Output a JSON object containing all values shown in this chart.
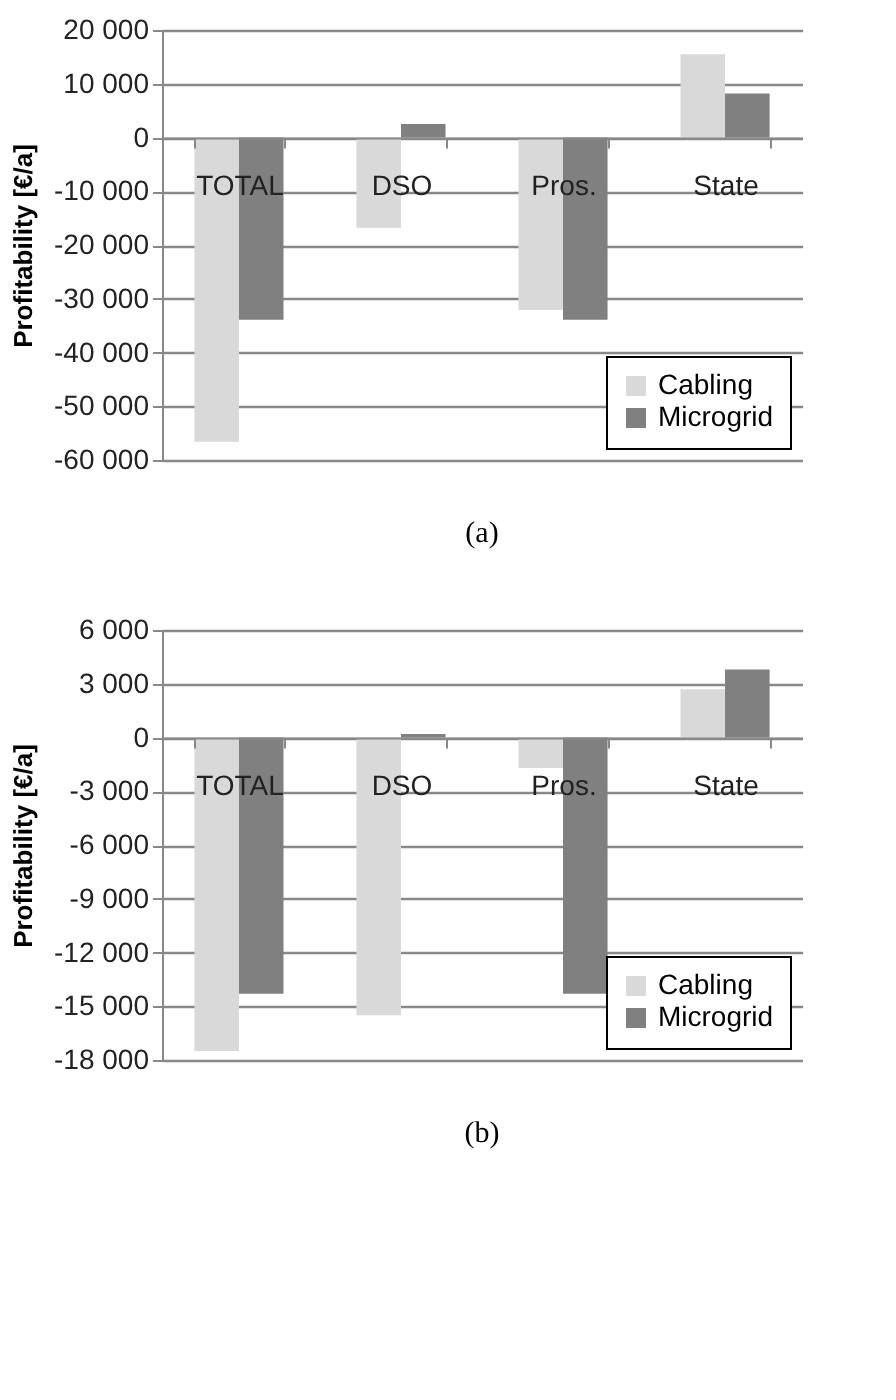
{
  "chart_data": [
    {
      "type": "bar",
      "categories": [
        "TOTAL",
        "DSO",
        "Pros.",
        "State"
      ],
      "ylabel": "Profitability [€/a]",
      "series": [
        {
          "name": "Cabling",
          "color": "#d9d9d9",
          "values": [
            -56600,
            -16800,
            -32100,
            15500
          ]
        },
        {
          "name": "Microgrid",
          "color": "#808080",
          "values": [
            -33900,
            2500,
            -33900,
            8200
          ]
        }
      ],
      "ylim": [
        -60000,
        20000
      ],
      "yticks": [
        {
          "value": -60000,
          "label": "-60 000"
        },
        {
          "value": -50000,
          "label": "-50 000"
        },
        {
          "value": -40000,
          "label": "-40 000"
        },
        {
          "value": -30000,
          "label": "-30 000"
        },
        {
          "value": -20000,
          "label": "-20 000"
        },
        {
          "value": -10000,
          "label": "-10 000"
        },
        0,
        {
          "value": 10000,
          "label": "10 000"
        },
        {
          "value": 20000,
          "label": "20 000"
        }
      ],
      "grid": "y",
      "legend": "bottom right",
      "annotations": [
        "(a)"
      ]
    },
    {
      "type": "bar",
      "categories": [
        "TOTAL",
        "DSO",
        "Pros.",
        "State"
      ],
      "ylabel": "Profitability [€/a]",
      "series": [
        {
          "name": "Cabling",
          "color": "#d9d9d9",
          "values": [
            -17500,
            -15500,
            -1700,
            2700
          ]
        },
        {
          "name": "Microgrid",
          "color": "#808080",
          "values": [
            -14300,
            200,
            -14300,
            3800
          ]
        }
      ],
      "ylim": [
        -18000,
        6000
      ],
      "yticks": [
        {
          "value": -18000,
          "label": "-18 000"
        },
        {
          "value": -15000,
          "label": "-15 000"
        },
        {
          "value": -12000,
          "label": "-12 000"
        },
        {
          "value": -9000,
          "label": "-9 000"
        },
        {
          "value": -6000,
          "label": "-6 000"
        },
        {
          "value": -3000,
          "label": "-3 000"
        },
        0,
        {
          "value": 3000,
          "label": "3 000"
        },
        {
          "value": 6000,
          "label": "6 000"
        }
      ],
      "grid": "y",
      "legend": "bottom right",
      "annotations": [
        "(b)"
      ]
    }
  ]
}
